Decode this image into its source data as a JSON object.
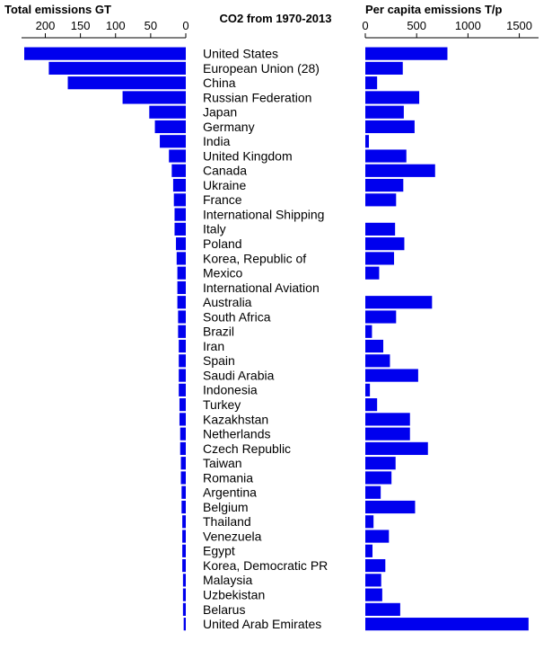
{
  "chart_data": {
    "type": "bar",
    "title": "CO2 from 1970-2013",
    "bar_color": "#0000ee",
    "categories": [
      "United States",
      "European Union (28)",
      "China",
      "Russian Federation",
      "Japan",
      "Germany",
      "India",
      "United Kingdom",
      "Canada",
      "Ukraine",
      "France",
      "International Shipping",
      "Italy",
      "Poland",
      "Korea, Republic of",
      "Mexico",
      "International Aviation",
      "Australia",
      "South Africa",
      "Brazil",
      "Iran",
      "Spain",
      "Saudi Arabia",
      "Indonesia",
      "Turkey",
      "Kazakhstan",
      "Netherlands",
      "Czech Republic",
      "Taiwan",
      "Romania",
      "Argentina",
      "Belgium",
      "Thailand",
      "Venezuela",
      "Egypt",
      "Korea, Democratic PR",
      "Malaysia",
      "Uzbekistan",
      "Belarus",
      "United Arab Emirates"
    ],
    "panels": [
      {
        "name": "total",
        "label": "Total emissions GT",
        "orientation": "reversed",
        "xlim": [
          0,
          230
        ],
        "ticks": [
          200,
          150,
          100,
          50,
          0
        ],
        "values": [
          230,
          195,
          168,
          90,
          52,
          44,
          37,
          24,
          20,
          18,
          17,
          16,
          16,
          14,
          13,
          12,
          12,
          12,
          11,
          11,
          10,
          10,
          10,
          10,
          9,
          9,
          8,
          8,
          7,
          7,
          6,
          6,
          5,
          5,
          5,
          5,
          4,
          4,
          4,
          3
        ]
      },
      {
        "name": "per_capita",
        "label": "Per capita emissions T/p",
        "orientation": "normal",
        "xlim": [
          0,
          1600
        ],
        "ticks": [
          0,
          500,
          1000,
          1500
        ],
        "values": [
          800,
          365,
          115,
          525,
          375,
          480,
          35,
          400,
          680,
          370,
          300,
          0,
          290,
          380,
          280,
          135,
          0,
          650,
          300,
          65,
          175,
          240,
          515,
          45,
          115,
          435,
          435,
          610,
          295,
          255,
          150,
          485,
          80,
          230,
          70,
          195,
          155,
          165,
          340,
          1590
        ]
      }
    ]
  }
}
